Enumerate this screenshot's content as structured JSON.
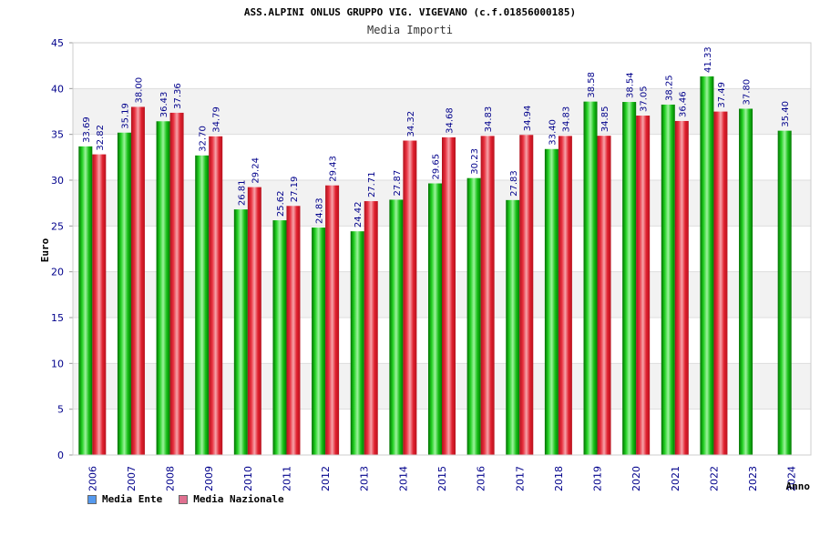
{
  "chart_data": {
    "type": "bar",
    "title": "ASS.ALPINI ONLUS GRUPPO VIG. VIGEVANO (c.f.01856000185)",
    "subtitle": "Media Importi",
    "xlabel": "Anno",
    "ylabel": "Euro",
    "ylim": [
      0,
      45
    ],
    "yticks": [
      "0",
      "5",
      "10",
      "15",
      "20",
      "25",
      "30",
      "35",
      "40",
      "45"
    ],
    "grid": true,
    "categories": [
      "2006",
      "2007",
      "2008",
      "2009",
      "2010",
      "2011",
      "2012",
      "2013",
      "2014",
      "2015",
      "2016",
      "2017",
      "2018",
      "2019",
      "2020",
      "2021",
      "2022",
      "2023",
      "2024"
    ],
    "series": [
      {
        "name": "Media Ente",
        "color": "#00b000",
        "legend_color": "#5599ee",
        "values": [
          33.69,
          35.19,
          36.43,
          32.7,
          26.81,
          25.62,
          24.83,
          24.42,
          27.87,
          29.65,
          30.23,
          27.83,
          33.4,
          38.58,
          38.54,
          38.25,
          41.33,
          37.8,
          35.4
        ],
        "labels": [
          "33.69",
          "35.19",
          "36.43",
          "32.70",
          "26.81",
          "25.62",
          "24.83",
          "24.42",
          "27.87",
          "29.65",
          "30.23",
          "27.83",
          "33.40",
          "38.58",
          "38.54",
          "38.25",
          "41.33",
          "37.80",
          "35.40"
        ]
      },
      {
        "name": "Media Nazionale",
        "color": "#e8202e",
        "legend_color": "#e07090",
        "values": [
          32.82,
          38.0,
          37.36,
          34.79,
          29.24,
          27.19,
          29.43,
          27.71,
          34.32,
          34.68,
          34.83,
          34.94,
          34.83,
          34.85,
          37.05,
          36.46,
          37.49,
          null,
          null
        ],
        "labels": [
          "32.82",
          "38.00",
          "37.36",
          "34.79",
          "29.24",
          "27.19",
          "29.43",
          "27.71",
          "34.32",
          "34.68",
          "34.83",
          "34.94",
          "34.83",
          "34.85",
          "37.05",
          "36.46",
          "37.49",
          null,
          null
        ]
      }
    ]
  }
}
